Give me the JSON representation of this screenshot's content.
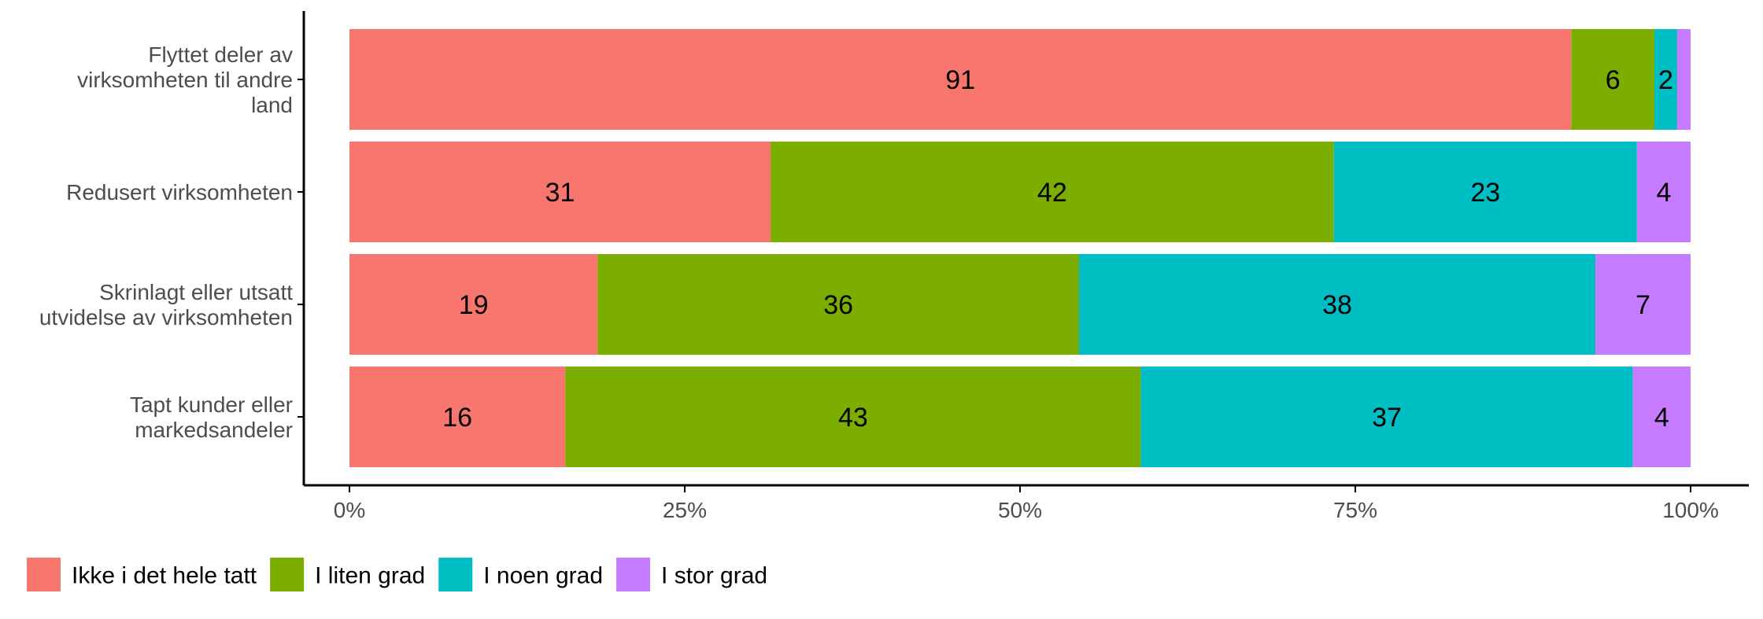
{
  "chart_data": {
    "type": "bar",
    "orientation": "horizontal",
    "stacked": true,
    "normalized": true,
    "categories": [
      [
        "Flyttet deler av",
        "virksomheten til andre",
        "land"
      ],
      [
        "Redusert virksomheten"
      ],
      [
        "Skrinlagt eller utsatt",
        "utvidelse av virksomheten"
      ],
      [
        "Tapt kunder eller",
        "markedsandeler"
      ]
    ],
    "series": [
      {
        "name": "Ikke i det hele tatt",
        "color": "#F8766D",
        "values": [
          91.1,
          31.4,
          18.5,
          16.1
        ],
        "labels": [
          "91",
          "31",
          "19",
          "16"
        ]
      },
      {
        "name": "I liten grad",
        "color": "#7CAE00",
        "values": [
          6.2,
          42.0,
          35.9,
          42.9
        ],
        "labels": [
          "6",
          "42",
          "36",
          "43"
        ]
      },
      {
        "name": "I noen grad",
        "color": "#00BFC4",
        "values": [
          1.7,
          22.6,
          38.5,
          36.7
        ],
        "labels": [
          "2",
          "23",
          "38",
          "37"
        ]
      },
      {
        "name": "I stor grad",
        "color": "#C77CFF",
        "values": [
          1.0,
          4.0,
          7.1,
          4.3
        ],
        "labels": [
          "",
          "4",
          "7",
          "4"
        ]
      }
    ],
    "xlim": [
      0,
      100
    ],
    "x_ticks": [
      0,
      25,
      50,
      75,
      100
    ],
    "x_tick_labels": [
      "0%",
      "25%",
      "50%",
      "75%",
      "100%"
    ],
    "title": "",
    "xlabel": "",
    "ylabel": "",
    "grid": false,
    "legend_position": "bottom-left"
  }
}
